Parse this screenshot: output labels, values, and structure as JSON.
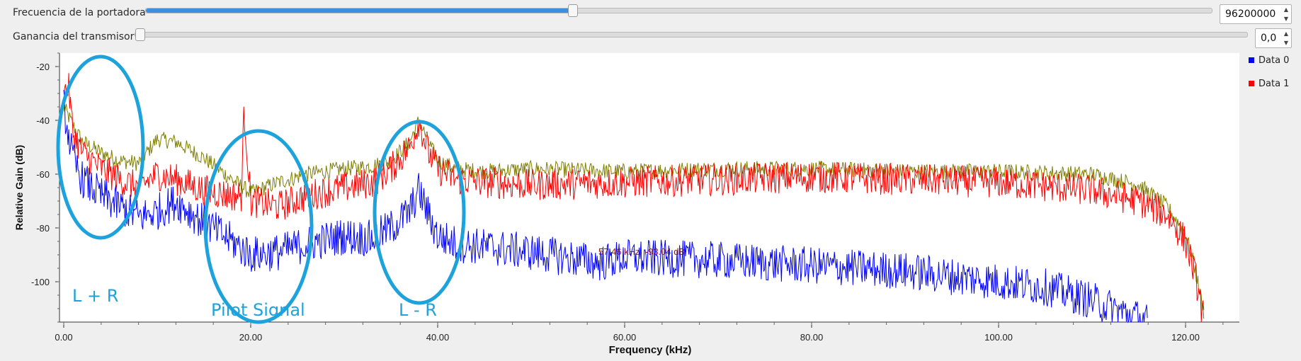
{
  "controls": {
    "carrier": {
      "label": "Frecuencia de la portadora",
      "value": "96200000",
      "slider_fraction": 0.4
    },
    "gain": {
      "label": "Ganancia del transmisor",
      "value": "0,0",
      "slider_fraction": 0.0
    }
  },
  "legend": [
    {
      "name": "Data 0",
      "color": "#0000ff"
    },
    {
      "name": "Data 1",
      "color": "#ff0000"
    }
  ],
  "marker_readout": "57.46 kHz, -93.04 dB",
  "annotations": {
    "l_plus_r": "L + R",
    "pilot": "Pilot Signal",
    "l_minus_r": "L - R",
    "color": "#1da2dc"
  },
  "colors": {
    "data0": "#0000ff",
    "data1": "#ff0000",
    "trace3": "#808000",
    "marker_text": "#8b1a1a"
  },
  "chart_data": {
    "type": "line",
    "xlabel": "Frequency (kHz)",
    "ylabel": "Relative Gain (dB)",
    "xlim": [
      0,
      125
    ],
    "ylim": [
      -115,
      -15
    ],
    "xticks": [
      0,
      20,
      40,
      60,
      80,
      100,
      120
    ],
    "xtick_labels": [
      "0.00",
      "20.00",
      "40.00",
      "60.00",
      "80.00",
      "100.00",
      "120.00"
    ],
    "yticks": [
      -20,
      -40,
      -60,
      -80,
      -100
    ],
    "ytick_labels": [
      "-20",
      "-40",
      "-60",
      "-80",
      "-100"
    ],
    "grid": false,
    "legend_position": "right",
    "series": [
      {
        "name": "Data 0",
        "color": "#0000ff",
        "x": [
          0,
          1,
          2,
          4,
          6,
          8,
          10,
          12,
          15,
          18,
          20,
          23,
          26,
          30,
          33,
          35,
          37,
          38,
          39,
          40,
          42,
          45,
          50,
          57.46,
          60,
          70,
          80,
          90,
          100,
          105,
          110,
          116
        ],
        "y": [
          -35,
          -55,
          -62,
          -68,
          -72,
          -76,
          -74,
          -70,
          -78,
          -85,
          -90,
          -89,
          -86,
          -83,
          -84,
          -80,
          -74,
          -66,
          -75,
          -83,
          -86,
          -87,
          -89,
          -93,
          -91,
          -92,
          -94,
          -96,
          -100,
          -102,
          -107,
          -115
        ]
      },
      {
        "name": "Data 1",
        "color": "#ff0000",
        "x": [
          0,
          0.5,
          1,
          2,
          4,
          6,
          8,
          10,
          12,
          15,
          18,
          19,
          19.3,
          20,
          23,
          26,
          30,
          33,
          35,
          37,
          38,
          39,
          40,
          42,
          45,
          50,
          60,
          70,
          80,
          90,
          100,
          110,
          115,
          118,
          120,
          121,
          122
        ],
        "y": [
          -30,
          -27,
          -45,
          -52,
          -58,
          -62,
          -65,
          -60,
          -62,
          -66,
          -68,
          -68,
          -36,
          -70,
          -72,
          -68,
          -65,
          -63,
          -58,
          -50,
          -40,
          -52,
          -58,
          -62,
          -63,
          -64,
          -63,
          -62,
          -61,
          -62,
          -63,
          -66,
          -70,
          -75,
          -85,
          -97,
          -115
        ]
      },
      {
        "name": "",
        "color": "#808000",
        "x": [
          0,
          1,
          2,
          4,
          6,
          8,
          10,
          12,
          15,
          18,
          20,
          23,
          26,
          30,
          33,
          35,
          37,
          38,
          39,
          40,
          42,
          45,
          50,
          60,
          70,
          80,
          90,
          100,
          110,
          115,
          118,
          120,
          121,
          122
        ],
        "y": [
          -35,
          -42,
          -48,
          -52,
          -55,
          -56,
          -47,
          -48,
          -54,
          -62,
          -67,
          -63,
          -60,
          -58,
          -57,
          -55,
          -48,
          -40,
          -48,
          -55,
          -58,
          -59,
          -58,
          -59,
          -58,
          -58,
          -59,
          -59,
          -60,
          -64,
          -72,
          -82,
          -95,
          -112
        ]
      }
    ]
  }
}
